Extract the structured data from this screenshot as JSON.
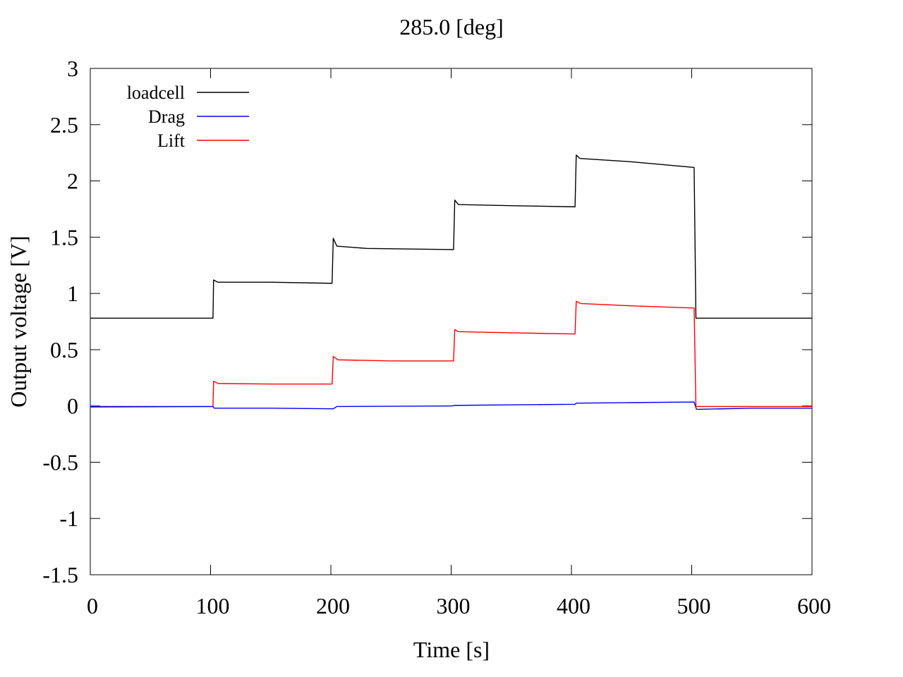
{
  "chart_data": {
    "type": "line",
    "title": "285.0 [deg]",
    "xlabel": "Time [s]",
    "ylabel": "Output voltage [V]",
    "xlim": [
      0,
      600
    ],
    "ylim": [
      -1.5,
      3
    ],
    "x_ticks": [
      "0",
      "100",
      "200",
      "300",
      "400",
      "500",
      "600"
    ],
    "y_ticks": [
      "3",
      "2.5",
      "2",
      "1.5",
      "1",
      "0.5",
      "0",
      "-0.5",
      "-1",
      "-1.5"
    ],
    "grid": false,
    "legend_position": "top-left",
    "series": [
      {
        "name": "loadcell",
        "color": "#000000",
        "points": [
          [
            0,
            0.78
          ],
          [
            102,
            0.78
          ],
          [
            102.5,
            1.12
          ],
          [
            106,
            1.1
          ],
          [
            150,
            1.1
          ],
          [
            201,
            1.09
          ],
          [
            202,
            1.49
          ],
          [
            205,
            1.42
          ],
          [
            230,
            1.4
          ],
          [
            302,
            1.39
          ],
          [
            303,
            1.83
          ],
          [
            306,
            1.79
          ],
          [
            350,
            1.78
          ],
          [
            403,
            1.77
          ],
          [
            404,
            2.23
          ],
          [
            407,
            2.2
          ],
          [
            450,
            2.17
          ],
          [
            502,
            2.12
          ],
          [
            503.5,
            0.78
          ],
          [
            600,
            0.78
          ]
        ]
      },
      {
        "name": "Drag",
        "color": "#0000ff",
        "points": [
          [
            0,
            -0.005
          ],
          [
            102,
            -0.005
          ],
          [
            103,
            -0.02
          ],
          [
            150,
            -0.02
          ],
          [
            202,
            -0.025
          ],
          [
            205,
            -0.005
          ],
          [
            300,
            0.0
          ],
          [
            303,
            0.005
          ],
          [
            350,
            0.01
          ],
          [
            403,
            0.015
          ],
          [
            404,
            0.025
          ],
          [
            450,
            0.03
          ],
          [
            502,
            0.035
          ],
          [
            504,
            -0.03
          ],
          [
            550,
            -0.02
          ],
          [
            600,
            -0.02
          ]
        ]
      },
      {
        "name": "Lift",
        "color": "#ff0000",
        "points": [
          [
            0,
            -0.01
          ],
          [
            102,
            -0.005
          ],
          [
            102.5,
            0.22
          ],
          [
            106,
            0.2
          ],
          [
            150,
            0.195
          ],
          [
            201,
            0.195
          ],
          [
            202,
            0.44
          ],
          [
            206,
            0.41
          ],
          [
            250,
            0.4
          ],
          [
            302,
            0.4
          ],
          [
            303,
            0.68
          ],
          [
            306,
            0.66
          ],
          [
            350,
            0.65
          ],
          [
            403,
            0.64
          ],
          [
            404,
            0.93
          ],
          [
            408,
            0.91
          ],
          [
            450,
            0.89
          ],
          [
            502,
            0.87
          ],
          [
            503.5,
            -0.005
          ],
          [
            600,
            -0.005
          ]
        ]
      }
    ]
  }
}
